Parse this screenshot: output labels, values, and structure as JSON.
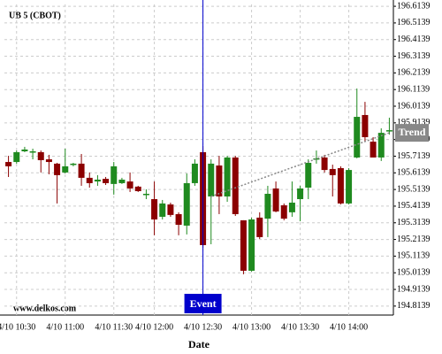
{
  "chart_data": {
    "type": "candlestick",
    "title": "UB 5 (CBOT)",
    "x_label": "Date",
    "watermark": "www.delkos.com",
    "categories": [
      null,
      "4/10 10:30",
      null,
      null,
      null,
      null,
      null,
      "4/10 11:00",
      null,
      null,
      null,
      null,
      null,
      "4/10 11:30",
      null,
      null,
      null,
      null,
      "4/10 12:00",
      null,
      null,
      null,
      null,
      null,
      "4/10 12:30",
      null,
      null,
      null,
      null,
      null,
      "4/10 13:00",
      null,
      null,
      null,
      null,
      null,
      "4/10 13:30",
      null,
      null,
      null,
      null,
      null,
      "4/10 14:00",
      null,
      null,
      null,
      null,
      null
    ],
    "open": [
      195.679,
      195.679,
      195.743,
      195.738,
      195.738,
      195.695,
      195.669,
      195.616,
      195.663,
      195.669,
      195.584,
      195.562,
      195.578,
      195.547,
      195.552,
      195.562,
      195.531,
      195.483,
      195.456,
      195.35,
      195.424,
      195.366,
      195.297,
      195.552,
      195.738,
      195.472,
      195.658,
      195.472,
      195.706,
      195.329,
      195.026,
      195.345,
      195.339,
      195.52,
      195.419,
      195.377,
      195.456,
      195.525,
      195.695,
      195.706,
      195.637,
      195.642,
      195.43,
      195.706,
      195.961,
      195.801,
      195.706,
      195.865
    ],
    "high": [
      195.716,
      195.748,
      195.77,
      195.759,
      195.748,
      195.722,
      195.674,
      195.759,
      195.674,
      195.727,
      195.616,
      195.6,
      195.589,
      195.679,
      195.584,
      195.616,
      195.536,
      195.515,
      195.562,
      195.451,
      195.435,
      195.377,
      195.61,
      195.695,
      195.775,
      195.695,
      195.716,
      195.716,
      195.716,
      195.329,
      195.345,
      195.377,
      195.536,
      195.562,
      195.43,
      195.562,
      195.536,
      195.695,
      195.748,
      195.722,
      195.663,
      195.653,
      195.642,
      196.12,
      196.04,
      195.828,
      195.881,
      195.945
    ],
    "low": [
      195.589,
      195.669,
      195.738,
      195.695,
      195.616,
      195.605,
      195.43,
      195.61,
      195.653,
      195.536,
      195.525,
      195.536,
      195.541,
      195.483,
      195.547,
      195.499,
      195.499,
      195.456,
      195.239,
      195.334,
      195.35,
      195.239,
      195.244,
      195.536,
      195.164,
      195.185,
      195.366,
      195.44,
      195.355,
      195.005,
      195.021,
      195.217,
      195.228,
      195.377,
      195.329,
      195.35,
      195.323,
      195.456,
      195.669,
      195.616,
      195.472,
      195.424,
      195.424,
      195.701,
      195.801,
      195.706,
      195.685,
      195.844
    ],
    "close": [
      195.653,
      195.738,
      195.754,
      195.743,
      195.69,
      195.679,
      195.6,
      195.653,
      195.669,
      195.584,
      195.552,
      195.573,
      195.552,
      195.653,
      195.573,
      195.52,
      195.504,
      195.488,
      195.334,
      195.43,
      195.361,
      195.302,
      195.552,
      195.669,
      195.18,
      195.669,
      195.472,
      195.706,
      195.366,
      195.026,
      195.334,
      195.228,
      195.488,
      195.382,
      195.339,
      195.435,
      195.52,
      195.674,
      195.701,
      195.631,
      195.6,
      195.43,
      195.631,
      195.95,
      195.828,
      195.706,
      195.854,
      195.87
    ],
    "up_color": "#1f8a1f",
    "down_color": "#8b0000",
    "ylim": [
      194.76,
      196.625
    ],
    "yticks": [
      196.6139,
      196.5139,
      196.4139,
      196.3139,
      196.2139,
      196.1139,
      196.0139,
      195.9139,
      195.8139,
      195.7139,
      195.6139,
      195.5139,
      195.4139,
      195.3139,
      195.2139,
      195.1139,
      195.0139,
      194.9139,
      194.8139
    ],
    "grid": true,
    "event": {
      "label": "Event",
      "index": 24,
      "color": "#0000cc"
    },
    "trend": {
      "label": "Trend",
      "x": [
        25,
        47
      ],
      "values": [
        195.472,
        195.854
      ],
      "color": "#888888"
    }
  }
}
